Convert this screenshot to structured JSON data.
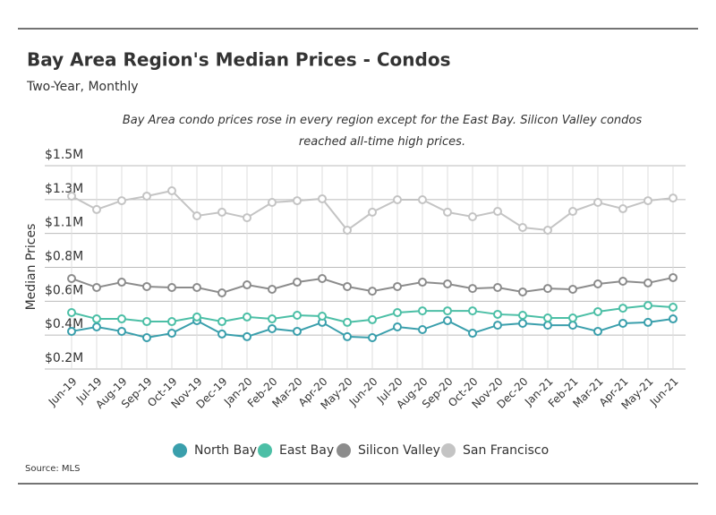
{
  "chart_data": {
    "type": "line",
    "title": "Bay Area Region's Median Prices - Condos",
    "subtitle": "Two-Year, Monthly",
    "annotation": "Bay Area condo prices rose in every region except for the East Bay. Silicon Valley condos reached all-time high prices.",
    "y_label": "Median Prices",
    "source": "Source: MLS",
    "categories": [
      "Jun-19",
      "Jul-19",
      "Aug-19",
      "Sep-19",
      "Oct-19",
      "Nov-19",
      "Dec-19",
      "Jan-20",
      "Feb-20",
      "Mar-20",
      "Apr-20",
      "May-20",
      "Jun-20",
      "Jul-20",
      "Aug-20",
      "Sep-20",
      "Oct-20",
      "Nov-20",
      "Dec-20",
      "Jan-21",
      "Feb-21",
      "Mar-21",
      "Apr-21",
      "May-21",
      "Jun-21"
    ],
    "series": [
      {
        "name": "North Bay",
        "color": "#3a9fac",
        "values": [
          439000,
          467000,
          439000,
          399000,
          427000,
          507000,
          422000,
          405000,
          456000,
          439000,
          496000,
          405000,
          399000,
          467000,
          450000,
          507000,
          427000,
          478000,
          490000,
          478000,
          478000,
          439000,
          490000,
          496000,
          518000
        ]
      },
      {
        "name": "East Bay",
        "color": "#4cbfa6",
        "values": [
          558000,
          518000,
          518000,
          501000,
          501000,
          530000,
          501000,
          530000,
          518000,
          541000,
          535000,
          496000,
          513000,
          558000,
          569000,
          569000,
          569000,
          547000,
          541000,
          524000,
          524000,
          564000,
          586000,
          603000,
          592000
        ]
      },
      {
        "name": "Silicon Valley",
        "color": "#8c8c8c",
        "values": [
          774000,
          717000,
          751000,
          723000,
          717000,
          717000,
          683000,
          734000,
          706000,
          751000,
          774000,
          723000,
          694000,
          723000,
          751000,
          740000,
          711000,
          717000,
          689000,
          711000,
          706000,
          740000,
          757000,
          746000,
          780000
        ]
      },
      {
        "name": "San Francisco",
        "color": "#c4c4c4",
        "values": [
          1297000,
          1212000,
          1268000,
          1297000,
          1331000,
          1172000,
          1195000,
          1160000,
          1257000,
          1268000,
          1280000,
          1081000,
          1195000,
          1274000,
          1274000,
          1195000,
          1166000,
          1200000,
          1098000,
          1081000,
          1200000,
          1257000,
          1217000,
          1268000,
          1285000
        ]
      }
    ],
    "ylim": [
      200000,
      1490000
    ],
    "yticks": [
      {
        "value": 200000,
        "label": "$0.2M"
      },
      {
        "value": 415000,
        "label": "$0.4M"
      },
      {
        "value": 630000,
        "label": "$0.6M"
      },
      {
        "value": 845000,
        "label": "$0.8M"
      },
      {
        "value": 1060000,
        "label": "$1.1M"
      },
      {
        "value": 1275000,
        "label": "$1.3M"
      },
      {
        "value": 1490000,
        "label": "$1.5M"
      }
    ],
    "grid": true
  }
}
